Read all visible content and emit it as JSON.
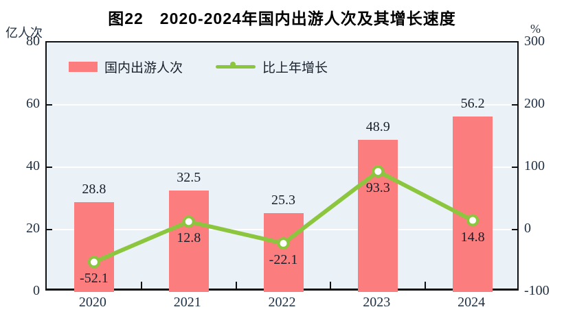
{
  "title": "图22　2020-2024年国内出游人次及其增长速度",
  "axes": {
    "left": {
      "unit": "亿人次",
      "tick_labels": [
        "80",
        "60",
        "40",
        "20",
        "0"
      ]
    },
    "right": {
      "unit": "%",
      "tick_labels": [
        "300",
        "200",
        "100",
        "0",
        "-100"
      ]
    }
  },
  "legend": {
    "bar_label": "国内出游人次",
    "line_label": "比上年增长"
  },
  "chart_data": {
    "type": "bar+line",
    "title": "图22　2020-2024年国内出游人次及其增长速度",
    "categories": [
      "2020",
      "2021",
      "2022",
      "2023",
      "2024"
    ],
    "series": [
      {
        "name": "国内出游人次",
        "type": "bar",
        "axis": "left",
        "unit": "亿人次",
        "values": [
          28.8,
          32.5,
          25.3,
          48.9,
          56.2
        ],
        "labels": [
          "28.8",
          "32.5",
          "25.3",
          "48.9",
          "56.2"
        ]
      },
      {
        "name": "比上年增长",
        "type": "line",
        "axis": "right",
        "unit": "%",
        "values": [
          -52.1,
          12.8,
          -22.1,
          93.3,
          14.8
        ],
        "labels": [
          "-52.1",
          "12.8",
          "-22.1",
          "93.3",
          "14.8"
        ]
      }
    ],
    "left_ylim": [
      0,
      80
    ],
    "right_ylim": [
      -100,
      300
    ],
    "left_ticks": [
      80,
      60,
      40,
      20,
      0
    ],
    "right_ticks": [
      300,
      200,
      100,
      0,
      -100
    ],
    "grid": true,
    "legend_position": "top-left-inside"
  },
  "colors": {
    "bar": "#FB7D7E",
    "line": "#8CC63F",
    "marker_fill": "#FFFFFF",
    "plot_bg": "#EBF2F7",
    "grid": "#FFFFFF",
    "axis_border": "#101010",
    "tick_text": "#1F2F42",
    "value_text": "#17202B"
  }
}
